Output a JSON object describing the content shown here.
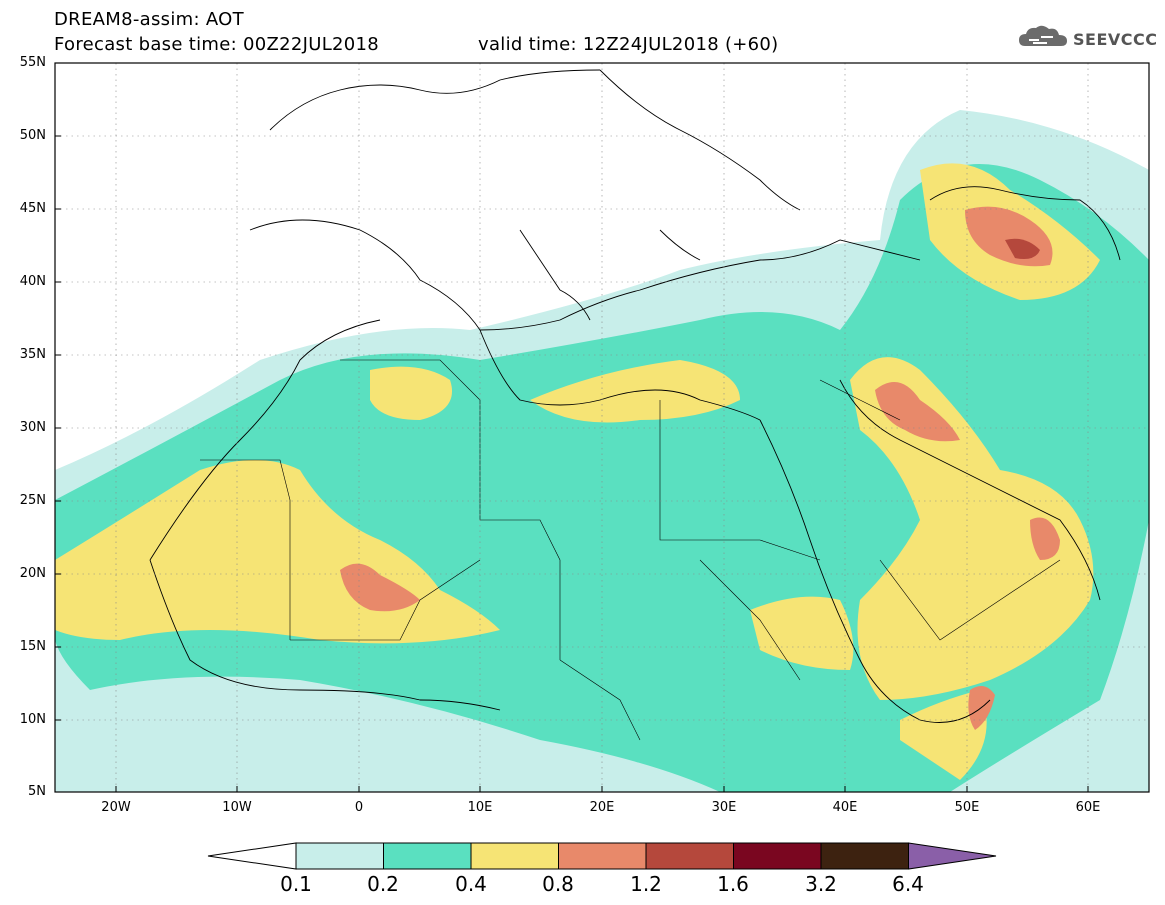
{
  "header": {
    "line1": "DREAM8-assim: AOT",
    "line2": "Forecast base time: 00Z22JUL2018",
    "line3": "valid time: 12Z24JUL2018 (+60)"
  },
  "logo": {
    "text": "SEEVCCC",
    "icon": "cloud-icon"
  },
  "map": {
    "lat_labels": [
      "55N",
      "50N",
      "45N",
      "40N",
      "35N",
      "30N",
      "25N",
      "20N",
      "15N",
      "10N",
      "5N"
    ],
    "lon_labels": [
      "20W",
      "10W",
      "0",
      "10E",
      "20E",
      "30E",
      "40E",
      "50E",
      "60E"
    ],
    "gridlines": "dotted"
  },
  "colorbar": {
    "levels": [
      "0.1",
      "0.2",
      "0.4",
      "0.8",
      "1.2",
      "1.6",
      "3.2",
      "6.4"
    ],
    "colors": [
      "#ffffff",
      "#c8eeea",
      "#5ae0c0",
      "#f6e475",
      "#e8896a",
      "#b5483c",
      "#7a0620",
      "#3d2210",
      "#8a5fa8"
    ]
  }
}
